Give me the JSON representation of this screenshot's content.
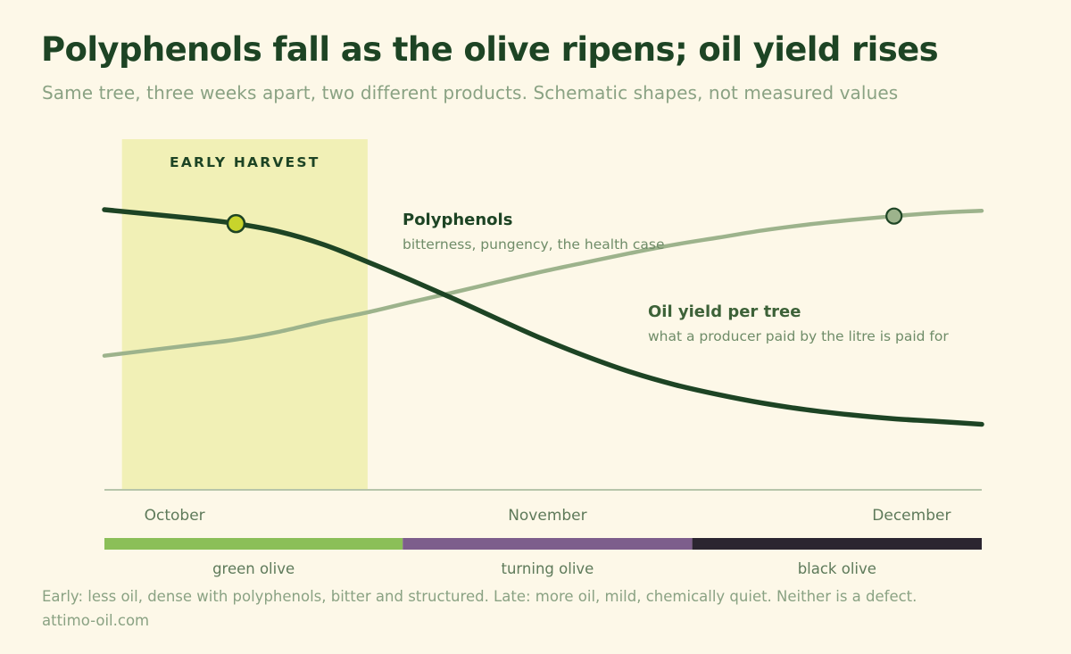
{
  "title": "Polyphenols fall as the olive ripens; oil yield rises",
  "subtitle": "Same tree, three weeks apart, two different products. Schematic shapes, not measured values",
  "footnote": "Early: less oil, dense with polyphenols, bitter and structured. Late: more oil, mild, chemically quiet. Neither is a defect.",
  "source": "attimo-oil.com",
  "colors": {
    "background": "#fdf8e8",
    "polyphenols": "#1d4424",
    "oil_yield": "#9db38c",
    "highlight_marker": "#c8d42c",
    "early_harvest_band": "#f1f0b6",
    "green_olive": "#8bbf58",
    "turning_olive": "#7d5e8c",
    "black_olive": "#2b2530"
  },
  "chart_data": {
    "type": "line",
    "title": "Polyphenols fall as the olive ripens; oil yield rises",
    "xlabel": "",
    "ylabel": "",
    "x_domain": [
      0,
      100
    ],
    "ylim": [
      0,
      100
    ],
    "grid": false,
    "x_ticks": [
      {
        "label": "October",
        "x": 8
      },
      {
        "label": "November",
        "x": 50.5
      },
      {
        "label": "December",
        "x": 92
      }
    ],
    "x": [
      0,
      10,
      15,
      20,
      25,
      30,
      35,
      40,
      45,
      50,
      55,
      60,
      65,
      70,
      75,
      80,
      85,
      90,
      95,
      100
    ],
    "series": [
      {
        "name": "Polyphenols",
        "note": "bitterness, pungency, the health case",
        "color": "#1d4424",
        "values": [
          100,
          96.1,
          93.7,
          90.0,
          84.2,
          76.4,
          68.1,
          59.4,
          50.3,
          41.5,
          33.6,
          26.6,
          20.9,
          16.4,
          12.6,
          9.6,
          7.3,
          5.5,
          4.3,
          3.0
        ],
        "highlight": {
          "x": 15,
          "value": 93.7
        }
      },
      {
        "name": "Oil yield per tree",
        "note": "what a producer paid by the litre is paid for",
        "color": "#9db38c",
        "values": [
          34,
          38.8,
          41.3,
          44.9,
          49.5,
          53.6,
          58.3,
          62.8,
          67.5,
          72.1,
          76.3,
          80.4,
          84.2,
          87.4,
          90.6,
          93.2,
          95.3,
          97.1,
          98.6,
          99.5
        ],
        "highlight": {
          "x": 90,
          "value": 97.1
        }
      }
    ],
    "annotations": [
      {
        "label": "EARLY HARVEST",
        "type": "band",
        "x_start": 2,
        "x_end": 30
      }
    ],
    "phases": [
      {
        "label": "green olive",
        "x_start": 0,
        "x_end": 34,
        "color": "#8bbf58"
      },
      {
        "label": "turning olive",
        "x_start": 34,
        "x_end": 67,
        "color": "#7d5e8c"
      },
      {
        "label": "black olive",
        "x_start": 67,
        "x_end": 100,
        "color": "#2b2530"
      }
    ]
  }
}
